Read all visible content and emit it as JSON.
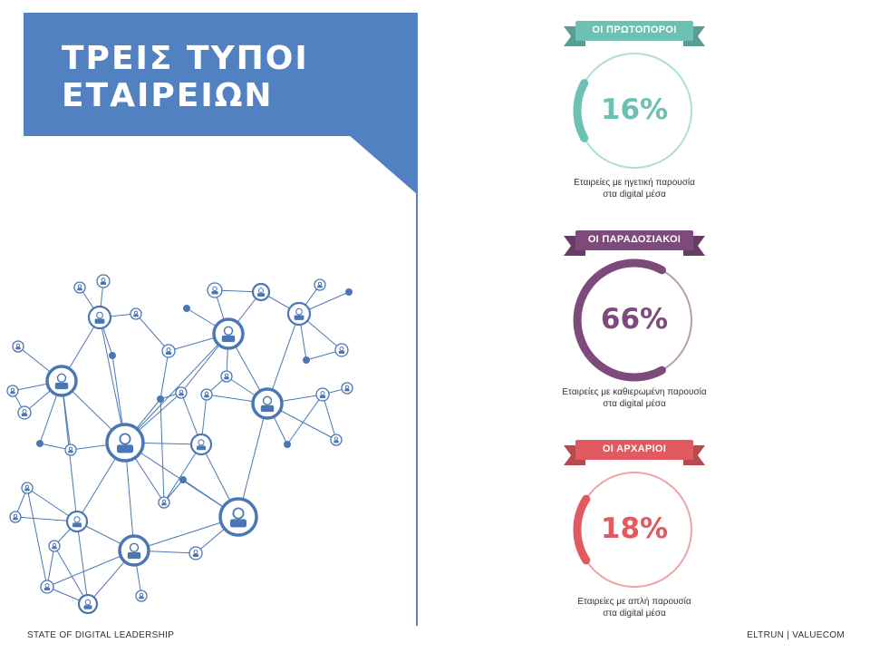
{
  "title": {
    "line1": "ΤΡΕΙΣ ΤΥΠΟΙ",
    "line2": "ΕΤΑΙΡΕΙΩΝ"
  },
  "colors": {
    "title_bg": "#5281c2",
    "network": "#4a77b4"
  },
  "segments": [
    {
      "label": "ΟΙ ΠΡΩΤΟΠΟΡΟΙ",
      "value": "16%",
      "fraction": 0.16,
      "color": "#6cc1b4",
      "caption_line1": "Εταιρείες με ηγετική παρουσία",
      "caption_line2": "στα digital μέσα"
    },
    {
      "label": "ΟΙ ΠΑΡΑΔΟΣΙΑΚΟΙ",
      "value": "66%",
      "fraction": 0.66,
      "color": "#7d4a7b",
      "caption_line1": "Εταιρείες με καθιερωμένη παρουσία",
      "caption_line2": "στα digital μέσα"
    },
    {
      "label": "ΟΙ ΑΡΧΑΡΙΟΙ",
      "value": "18%",
      "fraction": 0.18,
      "color": "#e05a5f",
      "caption_line1": "Εταιρείες με απλή παρουσία",
      "caption_line2": "στα digital μέσα"
    }
  ],
  "footer": {
    "left": "STATE OF DIGITAL LEADERSHIP",
    "right": "ELTRUN | VALUECOM"
  }
}
